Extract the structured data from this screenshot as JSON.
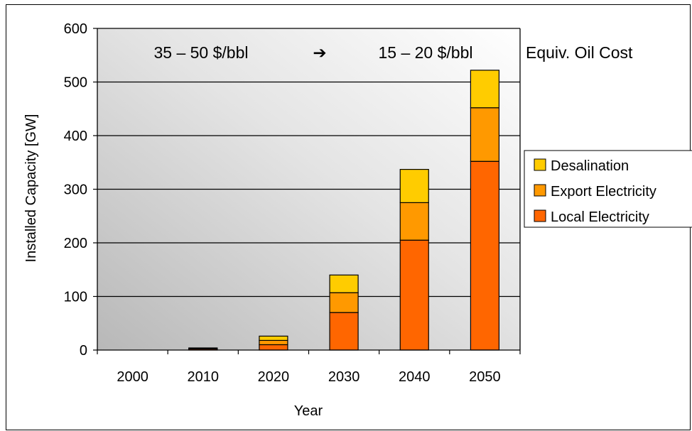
{
  "chart_data": {
    "type": "bar",
    "stacked": true,
    "categories": [
      "2000",
      "2010",
      "2020",
      "2030",
      "2040",
      "2050"
    ],
    "series": [
      {
        "name": "Local Electricity",
        "color": "#FF6600",
        "values": [
          0,
          2,
          10,
          70,
          205,
          352
        ]
      },
      {
        "name": "Export Electricity",
        "color": "#FF9900",
        "values": [
          0,
          1,
          8,
          37,
          70,
          100
        ]
      },
      {
        "name": "Desalination",
        "color": "#FFCC00",
        "values": [
          0,
          1,
          8,
          33,
          62,
          70
        ]
      }
    ],
    "xlabel": "Year",
    "ylabel": "Installed Capacity [GW]",
    "ylim": [
      0,
      600
    ],
    "yticks": [
      "0",
      "100",
      "200",
      "300",
      "400",
      "500",
      "600"
    ],
    "grid": true,
    "legend_placement": "right",
    "legend_order": [
      "Desalination",
      "Export Electricity",
      "Local Electricity"
    ],
    "annotations": {
      "left_cost": "35 – 50 $/bbl",
      "arrow": "➔",
      "right_cost": "15 – 20 $/bbl",
      "label": "Equiv. Oil Cost"
    }
  }
}
